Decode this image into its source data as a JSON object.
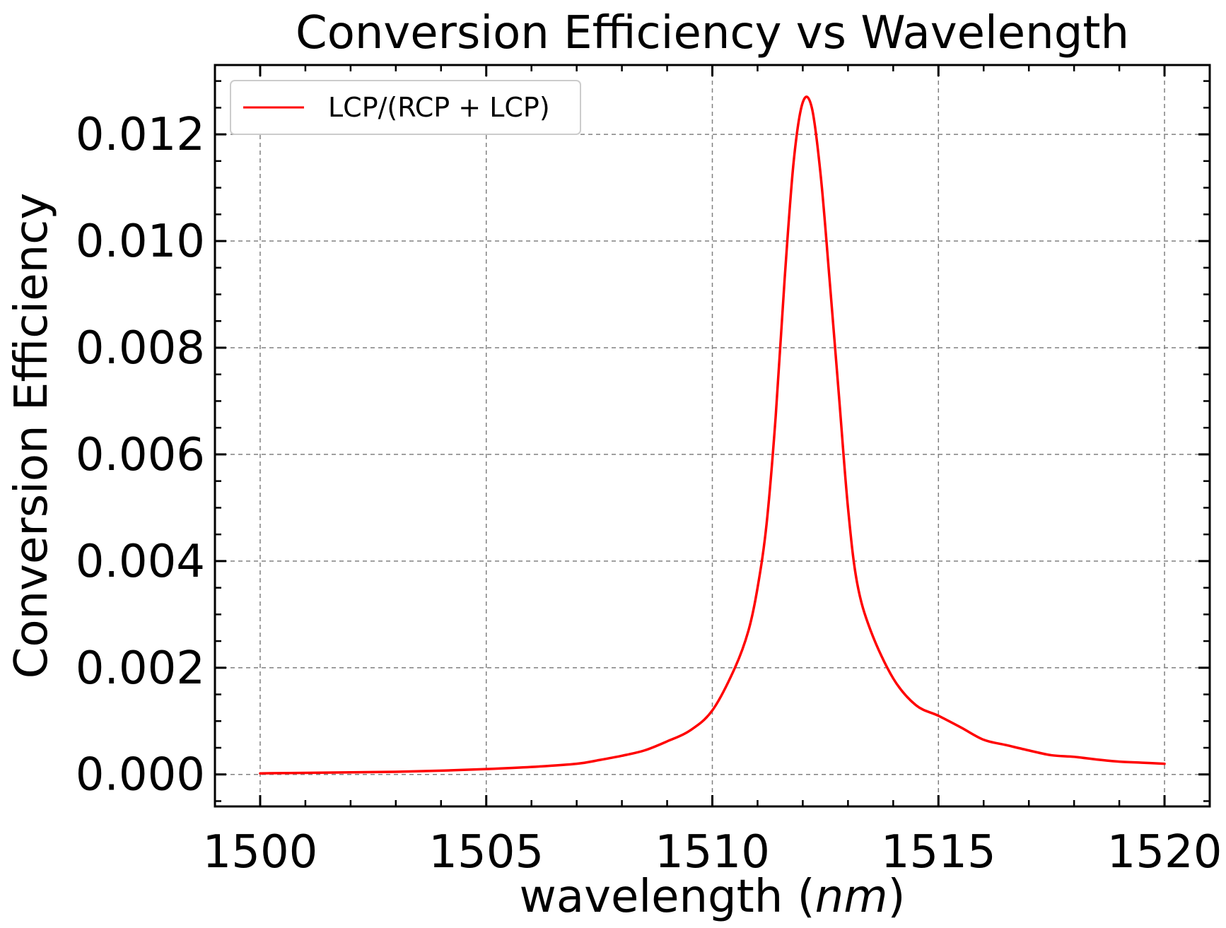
{
  "chart_data": {
    "type": "line",
    "title": "Conversion Efficiency vs Wavelength",
    "xlabel": "wavelength",
    "xlabel_unit": "nm",
    "ylabel": "Conversion Efficiency",
    "xlim": [
      1499,
      1521
    ],
    "ylim": [
      -0.0006,
      0.0133
    ],
    "x_ticks": [
      1500,
      1505,
      1510,
      1515,
      1520
    ],
    "y_ticks": [
      0.0,
      0.002,
      0.004,
      0.006,
      0.008,
      0.01,
      0.012
    ],
    "x_tick_labels": [
      "1500",
      "1505",
      "1510",
      "1515",
      "1520"
    ],
    "y_tick_labels": [
      "0.000",
      "0.002",
      "0.004",
      "0.006",
      "0.008",
      "0.010",
      "0.012"
    ],
    "grid": true,
    "legend_position": "top-left",
    "series": [
      {
        "name": "LCP/(RCP + LCP)",
        "color": "#ff0000",
        "x": [
          1500,
          1501,
          1502,
          1503,
          1504,
          1505,
          1506,
          1507,
          1507.5,
          1508,
          1508.5,
          1509,
          1509.5,
          1510,
          1510.5,
          1510.8,
          1511,
          1511.2,
          1511.4,
          1511.6,
          1511.8,
          1512,
          1512.2,
          1512.4,
          1512.6,
          1512.8,
          1513,
          1513.2,
          1513.5,
          1514,
          1514.5,
          1515,
          1515.5,
          1516,
          1516.5,
          1517,
          1517.5,
          1518,
          1518.5,
          1519,
          1519.5,
          1520
        ],
        "y": [
          2e-05,
          3e-05,
          4e-05,
          5e-05,
          7e-05,
          0.0001,
          0.00014,
          0.0002,
          0.00027,
          0.00035,
          0.00045,
          0.00062,
          0.00082,
          0.0012,
          0.002,
          0.0027,
          0.0035,
          0.0047,
          0.0067,
          0.0093,
          0.0115,
          0.0126,
          0.0125,
          0.0112,
          0.0092,
          0.0071,
          0.005,
          0.0036,
          0.0027,
          0.0018,
          0.0013,
          0.0011,
          0.00088,
          0.00065,
          0.00055,
          0.00045,
          0.00036,
          0.00033,
          0.00028,
          0.00024,
          0.00022,
          0.0002
        ]
      }
    ]
  }
}
